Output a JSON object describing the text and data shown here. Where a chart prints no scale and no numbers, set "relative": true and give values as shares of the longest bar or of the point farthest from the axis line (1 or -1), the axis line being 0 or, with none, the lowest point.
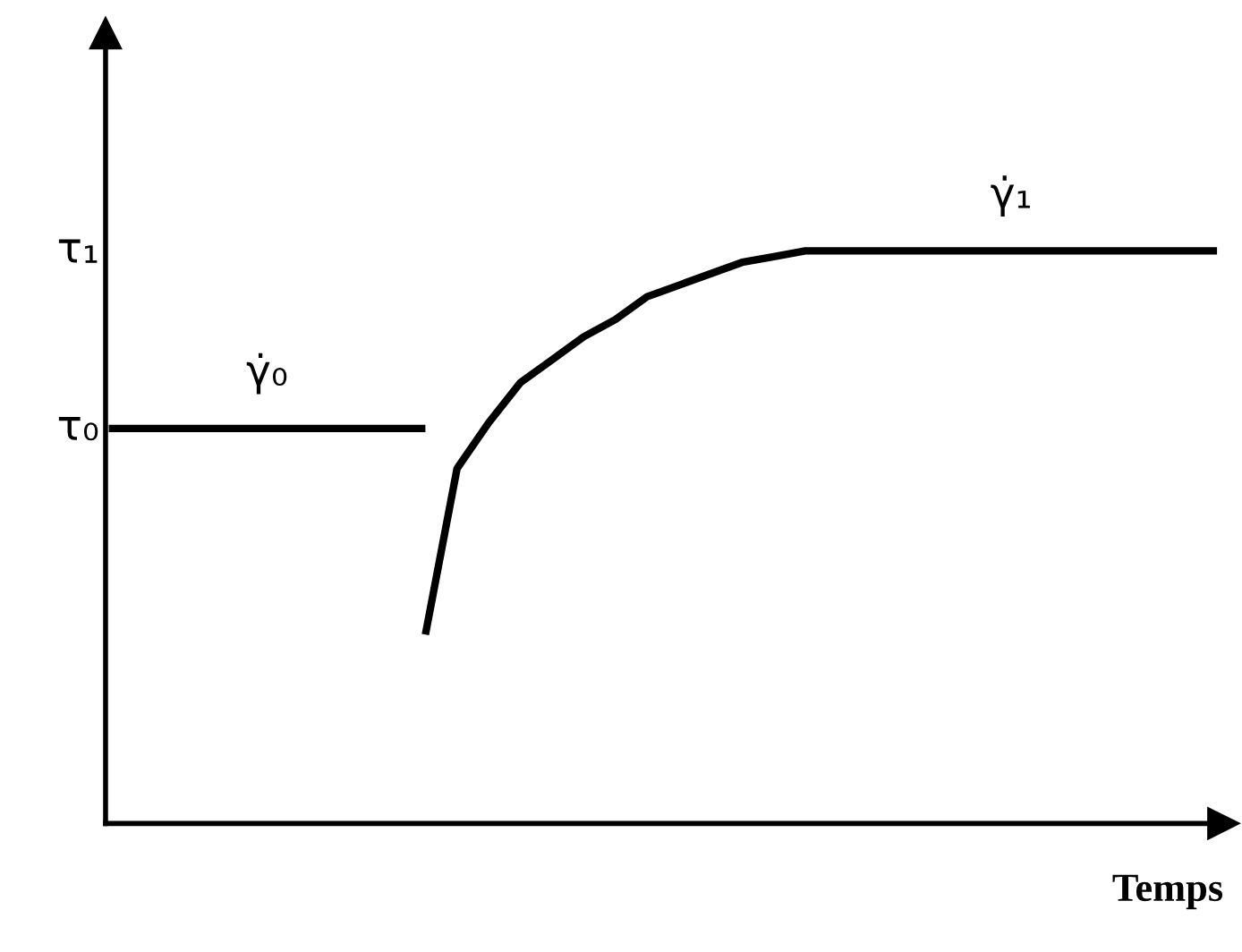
{
  "chart_data": {
    "type": "line",
    "relative": true,
    "xlabel": "Temps",
    "categories": [
      null,
      null,
      null,
      null,
      null,
      null,
      null,
      null,
      null,
      null,
      null,
      null,
      null,
      null,
      null,
      null,
      null,
      null,
      null,
      null,
      null,
      null,
      null,
      null,
      null,
      null,
      null,
      null,
      null,
      null,
      null,
      null,
      null,
      null,
      null,
      null
    ],
    "series": [
      {
        "name": "γ̇₀",
        "color": "#000000",
        "values": [
          0.69,
          0.69,
          0.69,
          0.69,
          0.69,
          0.69,
          0.69,
          0.69,
          0.69,
          0.69,
          0.69,
          null,
          null,
          null,
          null,
          null,
          null,
          null,
          null,
          null,
          null,
          null,
          null,
          null,
          null,
          null,
          null,
          null,
          null,
          null,
          null,
          null,
          null,
          null,
          null,
          null
        ]
      },
      {
        "name": "γ̇₁",
        "color": "#000000",
        "values": [
          null,
          null,
          null,
          null,
          null,
          null,
          null,
          null,
          null,
          null,
          0.33,
          0.62,
          0.7,
          0.77,
          0.81,
          0.85,
          0.88,
          0.92,
          0.94,
          0.96,
          0.98,
          0.99,
          1,
          1,
          1,
          1,
          1,
          1,
          1,
          1,
          1,
          1,
          1,
          1,
          1,
          1
        ]
      }
    ],
    "annotations": [
      "τ₁",
      "τ₀"
    ],
    "marker": "none",
    "line_style": "solid"
  }
}
